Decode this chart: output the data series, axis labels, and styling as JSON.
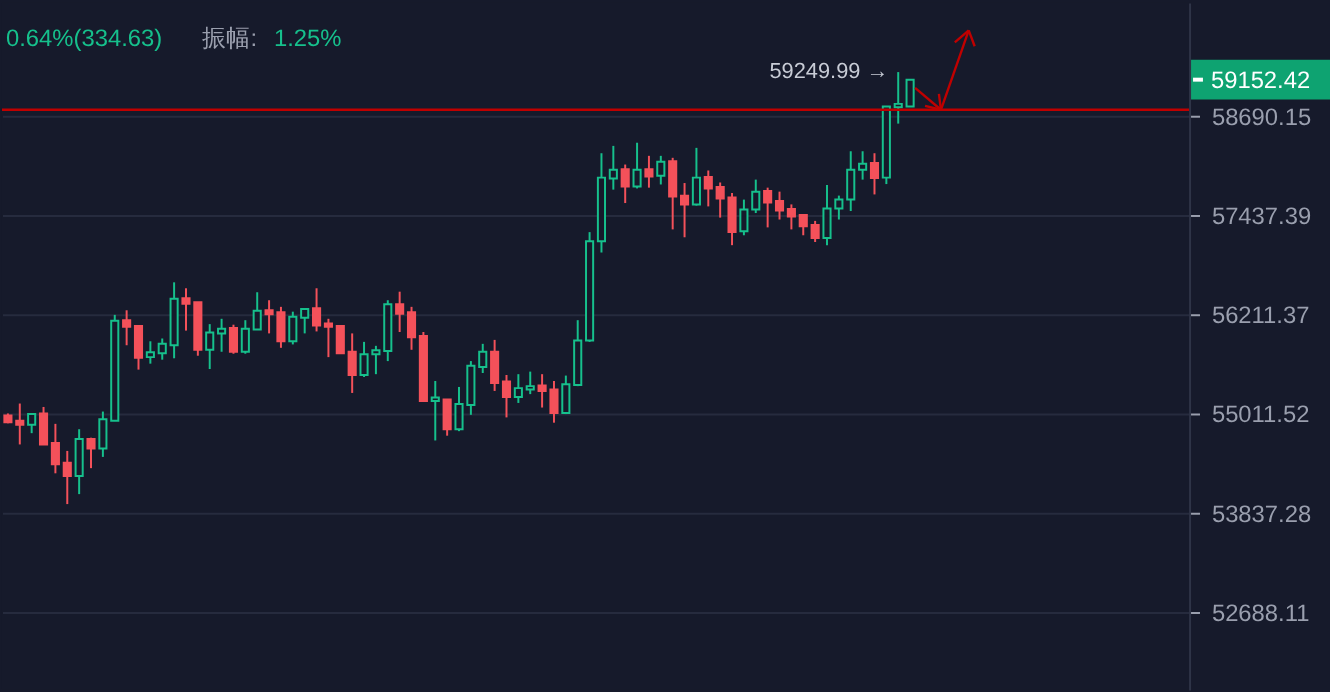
{
  "chart_data": {
    "type": "candlestick",
    "categories": [
      null,
      null,
      null,
      null,
      null,
      null,
      null,
      null,
      null,
      null,
      null,
      null,
      null,
      null,
      null,
      null,
      null,
      null,
      null,
      null,
      null,
      null,
      null,
      null,
      null,
      null,
      null,
      null,
      null,
      null,
      null,
      null,
      null,
      null,
      null,
      null,
      null,
      null,
      null,
      null,
      null,
      null,
      null,
      null,
      null,
      null,
      null,
      null,
      null,
      null,
      null,
      null,
      null,
      null,
      null,
      null,
      null,
      null,
      null,
      null,
      null,
      null,
      null,
      null,
      null,
      null,
      null,
      null,
      null,
      null,
      null,
      null,
      null,
      null,
      null,
      null,
      null,
      null,
      null,
      null,
      null,
      null,
      null,
      null,
      null,
      null,
      null,
      null,
      null,
      null,
      null,
      null,
      null,
      null,
      null,
      null,
      null,
      null,
      null,
      null
    ],
    "ohlc": [
      [
        54988,
        55012,
        54895,
        54906
      ],
      [
        54925,
        55131,
        54643,
        54878
      ],
      [
        54878,
        55005,
        54777,
        55005
      ],
      [
        55012,
        55090,
        54643,
        54643
      ],
      [
        54660,
        54888,
        54301,
        54409
      ],
      [
        54425,
        54566,
        53939,
        54268
      ],
      [
        54268,
        54824,
        54056,
        54707
      ],
      [
        54707,
        54723,
        54362,
        54596
      ],
      [
        54596,
        55035,
        54495,
        54942
      ],
      [
        54925,
        56204,
        54925,
        56132
      ],
      [
        56139,
        56260,
        55834,
        56060
      ],
      [
        56067,
        56067,
        55539,
        55683
      ],
      [
        55690,
        55882,
        55611,
        55748
      ],
      [
        55738,
        55916,
        55659,
        55851
      ],
      [
        55834,
        56603,
        55676,
        56400
      ],
      [
        56407,
        56530,
        56012,
        56341
      ],
      [
        56358,
        56358,
        55707,
        55779
      ],
      [
        55779,
        56091,
        55546,
        55988
      ],
      [
        55978,
        56156,
        55755,
        56036
      ],
      [
        56043,
        56084,
        55731,
        55755
      ],
      [
        55755,
        56139,
        55731,
        56036
      ],
      [
        56026,
        56481,
        56026,
        56253
      ],
      [
        56260,
        56383,
        55978,
        56211
      ],
      [
        56236,
        56302,
        55803,
        55882
      ],
      [
        55882,
        56243,
        55844,
        56180
      ],
      [
        56170,
        56277,
        55978,
        56277
      ],
      [
        56285,
        56530,
        56002,
        56074
      ],
      [
        56098,
        56156,
        55690,
        56060
      ],
      [
        56067,
        56067,
        55738,
        55738
      ],
      [
        55755,
        55978,
        55258,
        55474
      ],
      [
        55474,
        55875,
        55450,
        55724
      ],
      [
        55724,
        55827,
        55484,
        55772
      ],
      [
        55763,
        56383,
        55642,
        56334
      ],
      [
        56334,
        56488,
        55995,
        56218
      ],
      [
        56236,
        56302,
        55779,
        55930
      ],
      [
        55947,
        55995,
        55162,
        55162
      ],
      [
        55162,
        55402,
        54690,
        55203
      ],
      [
        55179,
        55179,
        54747,
        54824
      ],
      [
        54824,
        55330,
        54801,
        55124
      ],
      [
        55114,
        55642,
        54996,
        55587
      ],
      [
        55570,
        55851,
        55498,
        55755
      ],
      [
        55755,
        55899,
        55282,
        55378
      ],
      [
        55395,
        55474,
        54965,
        55210
      ],
      [
        55210,
        55484,
        55138,
        55316
      ],
      [
        55299,
        55515,
        55244,
        55340
      ],
      [
        55347,
        55484,
        55083,
        55282
      ],
      [
        55299,
        55402,
        54902,
        55019
      ],
      [
        55019,
        55467,
        55005,
        55364
      ],
      [
        55354,
        56139,
        55340,
        55892
      ],
      [
        55892,
        57224,
        55875,
        57111
      ],
      [
        57111,
        58214,
        56971,
        57906
      ],
      [
        57896,
        58307,
        57755,
        58006
      ],
      [
        58013,
        58071,
        57587,
        57795
      ],
      [
        57795,
        58347,
        57770,
        58006
      ],
      [
        58013,
        58181,
        57780,
        57921
      ],
      [
        57931,
        58181,
        57820,
        58106
      ],
      [
        58114,
        58156,
        57258,
        57670
      ],
      [
        57680,
        57838,
        57160,
        57570
      ],
      [
        57570,
        58282,
        57555,
        57906
      ],
      [
        57913,
        57996,
        57545,
        57770
      ],
      [
        57788,
        57845,
        57405,
        57645
      ],
      [
        57655,
        57713,
        57062,
        57224
      ],
      [
        57234,
        57630,
        57185,
        57505
      ],
      [
        57505,
        57881,
        57462,
        57730
      ],
      [
        57738,
        57780,
        57283,
        57595
      ],
      [
        57612,
        57730,
        57381,
        57495
      ],
      [
        57512,
        57570,
        57258,
        57420
      ],
      [
        57437,
        57437,
        57185,
        57297
      ],
      [
        57314,
        57364,
        57101,
        57150
      ],
      [
        57150,
        57813,
        57062,
        57520
      ],
      [
        57520,
        57680,
        57381,
        57630
      ],
      [
        57630,
        58239,
        57487,
        58006
      ],
      [
        58006,
        58239,
        57881,
        58081
      ],
      [
        58089,
        58214,
        57695,
        57901
      ],
      [
        57906,
        58809,
        57825,
        58809
      ],
      [
        58799,
        59249.99,
        58590,
        58842
      ],
      [
        58809,
        59152.42,
        58809,
        59152.42
      ],
      null,
      null,
      null,
      null,
      null,
      null,
      null,
      null,
      null,
      null,
      null,
      null,
      null,
      null,
      null,
      null,
      null,
      null,
      null,
      null,
      null,
      null,
      null
    ],
    "colors": [
      "#f4515a",
      "#f4515a",
      "#16c08c",
      "#f4515a",
      "#f4515a",
      "#f4515a",
      "#16c08c",
      "#f4515a",
      "#16c08c",
      "#16c08c",
      "#f4515a",
      "#f4515a",
      "#16c08c",
      "#16c08c",
      "#16c08c",
      "#f4515a",
      "#f4515a",
      "#16c08c",
      "#16c08c",
      "#f4515a",
      "#16c08c",
      "#16c08c",
      "#f4515a",
      "#f4515a",
      "#16c08c",
      "#16c08c",
      "#f4515a",
      "#f4515a",
      "#f4515a",
      "#f4515a",
      "#16c08c",
      "#16c08c",
      "#16c08c",
      "#f4515a",
      "#f4515a",
      "#f4515a",
      "#16c08c",
      "#f4515a",
      "#16c08c",
      "#16c08c",
      "#16c08c",
      "#f4515a",
      "#f4515a",
      "#16c08c",
      "#16c08c",
      "#f4515a",
      "#f4515a",
      "#16c08c",
      "#16c08c",
      "#16c08c",
      "#16c08c",
      "#16c08c",
      "#f4515a",
      "#16c08c",
      "#f4515a",
      "#16c08c",
      "#f4515a",
      "#f4515a",
      "#16c08c",
      "#f4515a",
      "#f4515a",
      "#f4515a",
      "#16c08c",
      "#16c08c",
      "#f4515a",
      "#f4515a",
      "#f4515a",
      "#f4515a",
      "#f4515a",
      "#16c08c",
      "#16c08c",
      "#16c08c",
      "#16c08c",
      "#f4515a",
      "#16c08c",
      "#16c08c",
      "#16c08c",
      null,
      null,
      null,
      null,
      null,
      null,
      null,
      null,
      null,
      null,
      null,
      null,
      null,
      null,
      null,
      null,
      null,
      null,
      null,
      null,
      null,
      null,
      null
    ],
    "log": true,
    "ylim": [
      51809,
      60152
    ],
    "yticks": [
      58690.15,
      57437.39,
      56211.37,
      55011.52,
      53837.28,
      52688.11
    ],
    "grid": "y",
    "ref_lines": [
      {
        "axis": "y",
        "value": 58766,
        "color": "#c00000"
      }
    ],
    "annotations": [
      "59249.99 →",
      "59152.42",
      "0.64%(334.63)",
      "振幅:",
      "1.25%"
    ]
  }
}
